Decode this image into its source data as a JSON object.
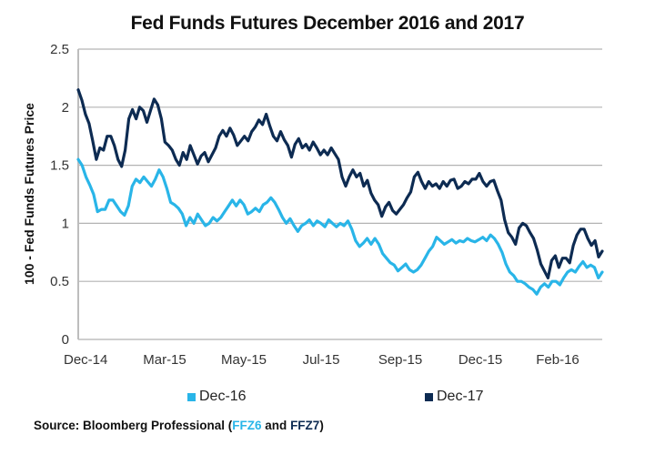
{
  "chart_data": {
    "type": "line",
    "title": "Fed Funds Futures December 2016 and 2017",
    "xlabel": "",
    "ylabel": "100 - Fed Funds Futures Price",
    "ylim": [
      0,
      2.5
    ],
    "yticks": [
      "0",
      "0.5",
      "1",
      "1.5",
      "2",
      "2.5"
    ],
    "ytick_values": [
      0,
      0.5,
      1,
      1.5,
      2,
      2.5
    ],
    "xticks": [
      "Dec-14",
      "Mar-15",
      "May-15",
      "Jul-15",
      "Sep-15",
      "Dec-15",
      "Feb-16"
    ],
    "xtick_positions": [
      0,
      0.168,
      0.337,
      0.505,
      0.674,
      0.842,
      1.0
    ],
    "grid": "horizontal",
    "legend_position": "bottom",
    "series": [
      {
        "name": "Dec-16",
        "color": "#29b5e8",
        "values": [
          1.55,
          1.5,
          1.4,
          1.33,
          1.25,
          1.1,
          1.12,
          1.12,
          1.2,
          1.2,
          1.15,
          1.1,
          1.07,
          1.15,
          1.32,
          1.38,
          1.35,
          1.4,
          1.36,
          1.32,
          1.38,
          1.46,
          1.4,
          1.3,
          1.18,
          1.16,
          1.13,
          1.08,
          0.98,
          1.05,
          1.0,
          1.08,
          1.03,
          0.98,
          1.0,
          1.05,
          1.02,
          1.05,
          1.1,
          1.15,
          1.2,
          1.15,
          1.2,
          1.16,
          1.08,
          1.1,
          1.13,
          1.1,
          1.16,
          1.18,
          1.22,
          1.18,
          1.12,
          1.05,
          1.0,
          1.04,
          0.98,
          0.93,
          0.98,
          1.0,
          1.03,
          0.98,
          1.02,
          1.0,
          0.97,
          1.03,
          1.0,
          0.97,
          1.0,
          0.98,
          1.02,
          0.95,
          0.85,
          0.8,
          0.83,
          0.87,
          0.82,
          0.87,
          0.82,
          0.74,
          0.7,
          0.66,
          0.64,
          0.59,
          0.62,
          0.65,
          0.6,
          0.58,
          0.6,
          0.64,
          0.7,
          0.76,
          0.8,
          0.88,
          0.85,
          0.82,
          0.84,
          0.86,
          0.83,
          0.85,
          0.84,
          0.87,
          0.85,
          0.84,
          0.86,
          0.88,
          0.85,
          0.9,
          0.87,
          0.82,
          0.75,
          0.65,
          0.58,
          0.55,
          0.5,
          0.5,
          0.48,
          0.45,
          0.43,
          0.39,
          0.45,
          0.48,
          0.45,
          0.5,
          0.5,
          0.47,
          0.53,
          0.58,
          0.6,
          0.58,
          0.63,
          0.67,
          0.62,
          0.64,
          0.62,
          0.53,
          0.58
        ]
      },
      {
        "name": "Dec-17",
        "color": "#0d2b52",
        "values": [
          2.15,
          2.06,
          1.94,
          1.86,
          1.71,
          1.55,
          1.65,
          1.63,
          1.75,
          1.75,
          1.67,
          1.55,
          1.49,
          1.63,
          1.9,
          1.98,
          1.9,
          2.0,
          1.97,
          1.87,
          1.97,
          2.07,
          2.02,
          1.9,
          1.7,
          1.67,
          1.63,
          1.55,
          1.5,
          1.61,
          1.55,
          1.67,
          1.59,
          1.51,
          1.58,
          1.61,
          1.53,
          1.59,
          1.65,
          1.75,
          1.8,
          1.75,
          1.82,
          1.76,
          1.67,
          1.71,
          1.75,
          1.71,
          1.79,
          1.83,
          1.89,
          1.85,
          1.94,
          1.84,
          1.75,
          1.71,
          1.79,
          1.72,
          1.67,
          1.57,
          1.68,
          1.73,
          1.65,
          1.68,
          1.63,
          1.7,
          1.65,
          1.59,
          1.63,
          1.59,
          1.65,
          1.6,
          1.55,
          1.4,
          1.32,
          1.4,
          1.46,
          1.4,
          1.43,
          1.32,
          1.37,
          1.26,
          1.2,
          1.16,
          1.06,
          1.14,
          1.18,
          1.11,
          1.08,
          1.12,
          1.16,
          1.22,
          1.27,
          1.4,
          1.44,
          1.36,
          1.3,
          1.36,
          1.32,
          1.34,
          1.3,
          1.36,
          1.32,
          1.37,
          1.38,
          1.3,
          1.32,
          1.36,
          1.34,
          1.38,
          1.38,
          1.43,
          1.36,
          1.32,
          1.36,
          1.37,
          1.28,
          1.2,
          1.03,
          0.92,
          0.88,
          0.82,
          0.96,
          1.0,
          0.98,
          0.92,
          0.87,
          0.77,
          0.65,
          0.59,
          0.53,
          0.68,
          0.72,
          0.62,
          0.7,
          0.7,
          0.66,
          0.81,
          0.9,
          0.95,
          0.95,
          0.87,
          0.81,
          0.85,
          0.71,
          0.76
        ]
      }
    ]
  },
  "legend": {
    "items": [
      {
        "label": "Dec-16",
        "color": "#29b5e8"
      },
      {
        "label": "Dec-17",
        "color": "#0d2b52"
      }
    ]
  },
  "source": {
    "prefix": "Source: Bloomberg Professional (",
    "code1": "FFZ6",
    "middle": " and ",
    "code2": "FFZ7",
    "suffix": ")"
  },
  "colors": {
    "grid": "#b3b3b3",
    "axis": "#bdbdbd"
  }
}
